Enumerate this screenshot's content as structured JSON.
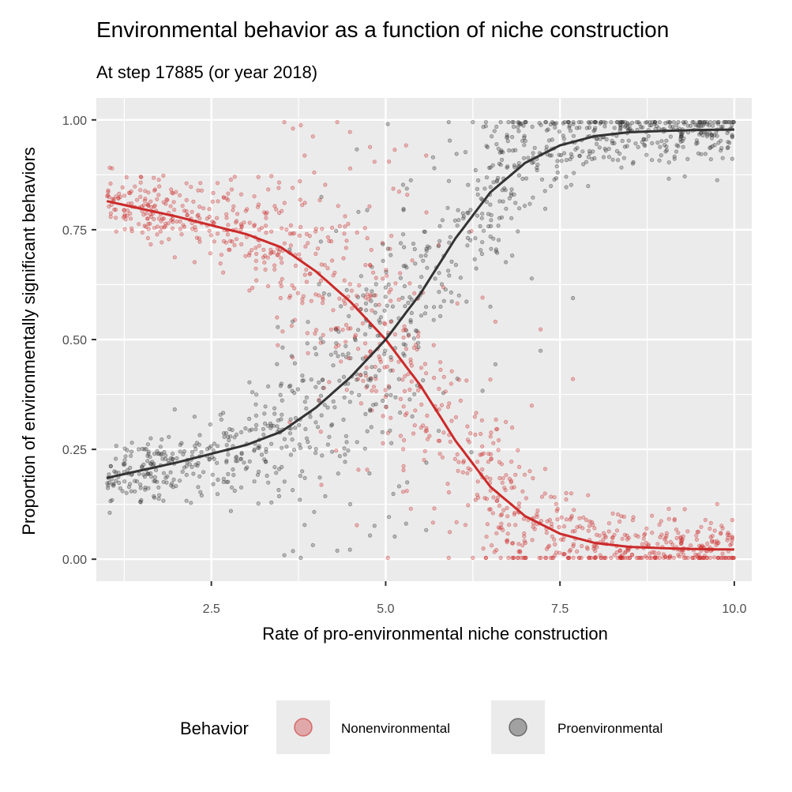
{
  "chart_data": {
    "type": "scatter",
    "title": "Environmental behavior as a function of niche construction",
    "subtitle": "At step 17885 (or year 2018)",
    "xlabel": "Rate of pro-environmental niche construction",
    "ylabel": "Proportion of environmentally significant behaviors",
    "xlim": [
      0.85,
      10.25
    ],
    "ylim": [
      -0.05,
      1.05
    ],
    "x_ticks": [
      2.5,
      5.0,
      7.5,
      10.0
    ],
    "x_tick_labels": [
      "2.5",
      "5.0",
      "7.5",
      "10.0"
    ],
    "y_ticks": [
      0.0,
      0.25,
      0.5,
      0.75,
      1.0
    ],
    "y_tick_labels": [
      "0.00",
      "0.25",
      "0.50",
      "0.75",
      "1.00"
    ],
    "grid": true,
    "legend": {
      "title": "Behavior",
      "position": "bottom",
      "entries": [
        "Nonenvironmental",
        "Proenvironmental"
      ]
    },
    "series": [
      {
        "name": "Nonenvironmental",
        "color": "#cc2a2a",
        "trend": {
          "x": [
            1.0,
            2.0,
            3.0,
            3.5,
            4.0,
            4.5,
            5.0,
            5.5,
            6.0,
            6.5,
            7.0,
            7.5,
            8.0,
            8.5,
            9.0,
            9.5,
            10.0
          ],
          "y": [
            0.815,
            0.78,
            0.74,
            0.71,
            0.655,
            0.585,
            0.5,
            0.395,
            0.27,
            0.165,
            0.098,
            0.058,
            0.037,
            0.028,
            0.025,
            0.023,
            0.022
          ]
        },
        "x_range": [
          1.0,
          10.0
        ],
        "spread": 0.09
      },
      {
        "name": "Proenvironmental",
        "color": "#333333",
        "trend": {
          "x": [
            1.0,
            2.0,
            3.0,
            3.5,
            4.0,
            4.5,
            5.0,
            5.5,
            6.0,
            6.5,
            7.0,
            7.5,
            8.0,
            8.5,
            9.0,
            9.5,
            10.0
          ],
          "y": [
            0.185,
            0.22,
            0.26,
            0.29,
            0.345,
            0.415,
            0.5,
            0.605,
            0.73,
            0.835,
            0.902,
            0.942,
            0.963,
            0.972,
            0.975,
            0.977,
            0.978
          ]
        },
        "x_range": [
          1.0,
          10.0
        ],
        "spread": 0.09
      }
    ]
  },
  "colors": {
    "panel_background": "#ebebeb",
    "grid": "#ffffff",
    "nonenvironmental": "#cc2a2a",
    "proenvironmental": "#333333"
  }
}
